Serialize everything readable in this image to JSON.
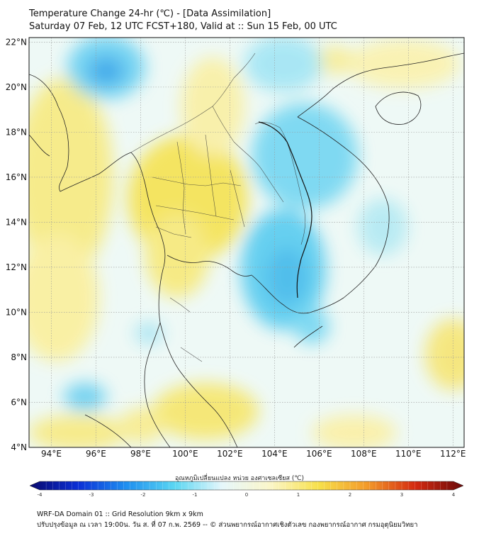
{
  "title": {
    "line1": "Temperature Change 24-hr (℃) - [Data Assimilation]",
    "line2": "Saturday 07 Feb, 12 UTC FCST+180, Valid at :: Sun 15 Feb, 00 UTC"
  },
  "map": {
    "lat_labels": [
      "22°N",
      "20°N",
      "18°N",
      "16°N",
      "14°N",
      "12°N",
      "10°N",
      "8°N",
      "6°N",
      "4°N"
    ],
    "lon_labels": [
      "94°E",
      "96°E",
      "98°E",
      "100°E",
      "102°E",
      "104°E",
      "106°E",
      "108°E",
      "110°E",
      "112°E"
    ],
    "lat_range": [
      4,
      22.2
    ],
    "lon_range": [
      93,
      112.5
    ]
  },
  "colorbar": {
    "title": "อุณหภูมิเปลี่ยนแปลง หน่วย องศาเซลเซียส (℃)",
    "tick_labels": [
      "-4",
      "-3",
      "-2",
      "-1",
      "0",
      "1",
      "2",
      "3",
      "4"
    ],
    "range": [
      -4,
      4
    ],
    "stops": [
      "#0a0a6e",
      "#0b2fd6",
      "#1f8ff0",
      "#5ad6f2",
      "#e6f7fb",
      "#fbf6c8",
      "#f7e04a",
      "#f39a2a",
      "#d42a10",
      "#6a0a0a"
    ]
  },
  "footer": {
    "line1": "WRF-DA Domain 01 :: Grid Resolution 9km x 9km",
    "line2": "ปรับปรุงข้อมูล ณ เวลา 19:00น. วัน ส. ที่ 07 ก.พ. 2569 -- © ส่วนพยากรณ์อากาศเชิงตัวเลข กองพยากรณ์อากาศ กรมอุตุนิยมวิทยา"
  },
  "colors": {
    "warm": "#f6e872",
    "cool": "#5fd3f0",
    "strong_cool": "#1e8fe0",
    "neutral": "#eef9f8"
  }
}
